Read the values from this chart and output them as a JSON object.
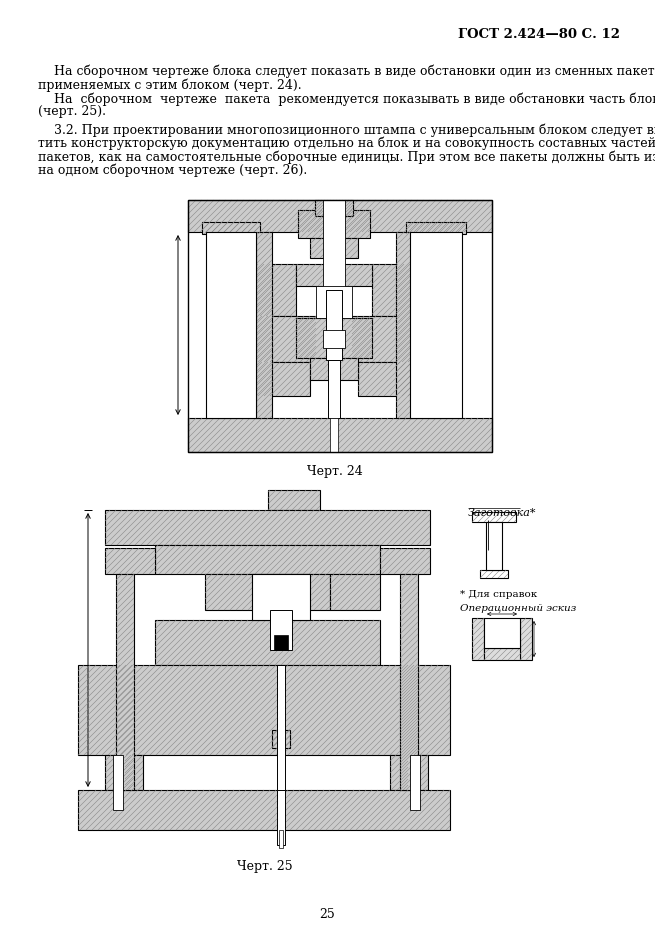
{
  "page_header": "ГОСТ 2.424—80 С. 12",
  "paragraph1_line1": "    На сборочном чертеже блока следует показать в виде обстановки один из сменных пакетов,",
  "paragraph1_line2": "применяемых с этим блоком (черт. 24).",
  "paragraph2_line1": "    На  сборочном  чертеже  пакета  рекомендуется показывать в виде обстановки часть блока",
  "paragraph2_line2": "(черт. 25).",
  "paragraph3_line1": "    3.2. При проектировании многопозиционного штампа с универсальным блоком следует выпус-",
  "paragraph3_line2": "тить конструкторскую документацию отдельно на блок и на совокупность составных частей всех",
  "paragraph3_line3": "пакетов, как на самостоятельные сборочные единицы. При этом все пакеты должны быть изображены",
  "paragraph3_line4": "на одном сборочном чертеже (черт. 26).",
  "caption1": "Черт. 24",
  "caption2": "Черт. 25",
  "ann_zaготовка": "Заготовка*",
  "ann_dlya_spravok": "* Для справок",
  "ann_eskiz": "Операционный эскиз",
  "page_number": "25",
  "bg_color": "#ffffff",
  "text_color": "#000000",
  "hatch_color": "#888888",
  "hatch_bg": "#cccccc",
  "font_size_body": 9.0,
  "font_size_header": 9.5,
  "font_size_caption": 9.0,
  "font_size_page": 9.0,
  "font_size_ann": 8.0
}
